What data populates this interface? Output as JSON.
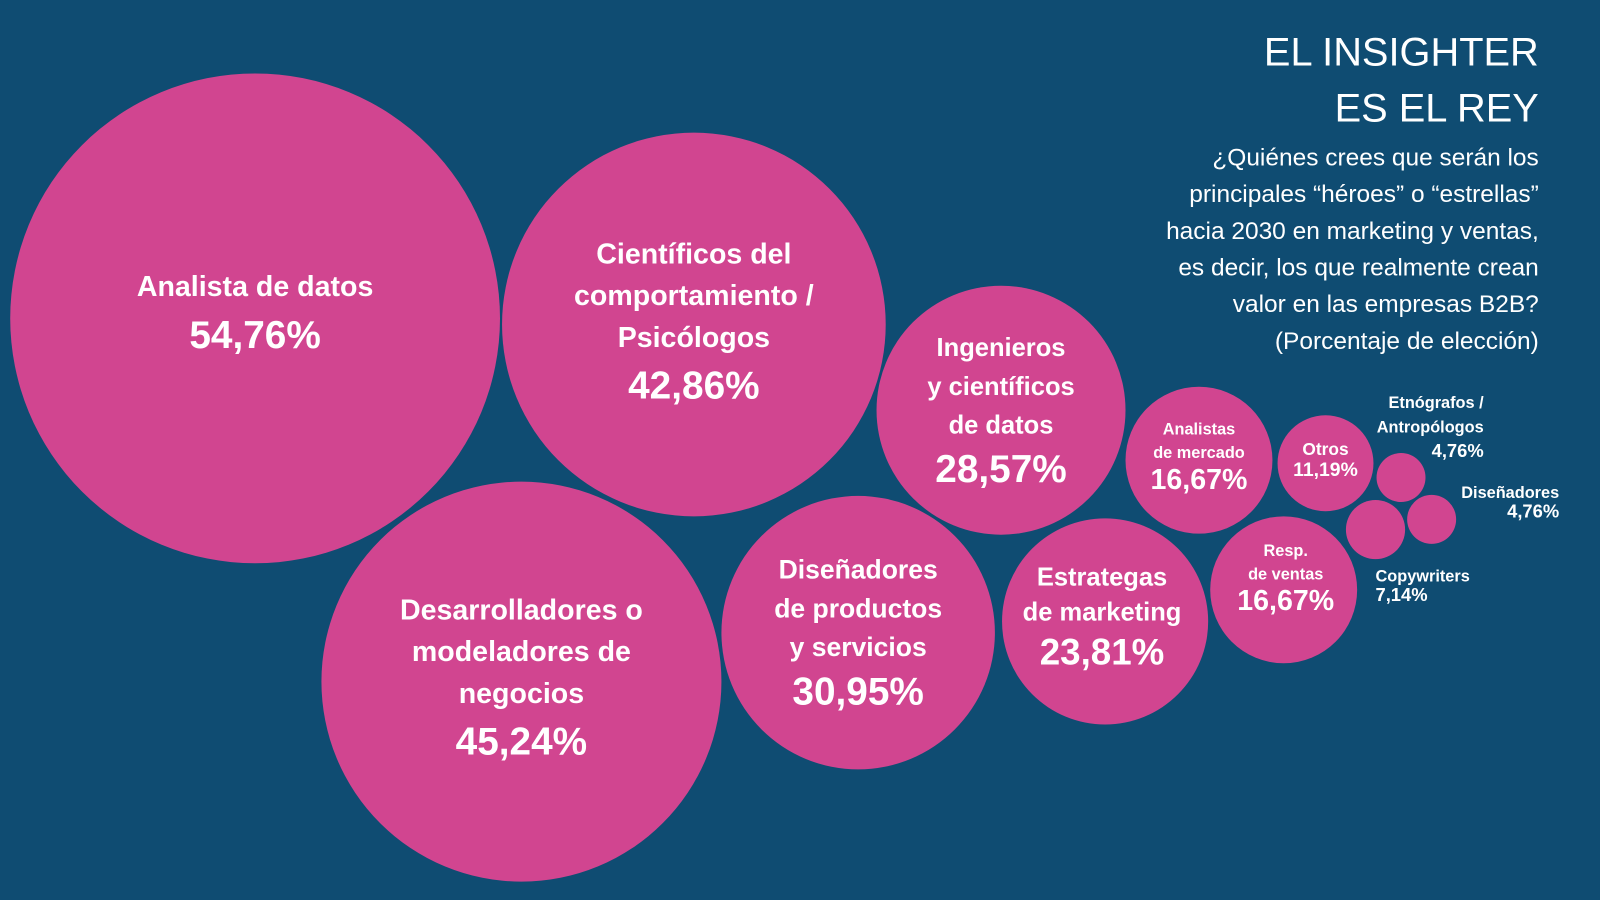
{
  "title": [
    "EL INSIGHTER",
    "ES EL REY"
  ],
  "subtitle": [
    "¿Quiénes crees que serán los",
    "principales “héroes” o “estrellas”",
    "hacia 2030 en marketing y ventas,",
    "es decir, los que realmente crean",
    "valor en las empresas B2B?",
    "(Porcentaje de elección)"
  ],
  "colors": {
    "background": "#0f4c72",
    "bubble": "#d14590",
    "text": "#ffffff"
  },
  "chart_data": {
    "type": "bubble",
    "unit": "%",
    "items": [
      {
        "label": [
          "Analista de datos"
        ],
        "value": 54.76,
        "display": "54,76%"
      },
      {
        "label": [
          "Científicos del",
          "comportamiento /",
          "Psicólogos"
        ],
        "value": 42.86,
        "display": "42,86%"
      },
      {
        "label": [
          "Ingenieros",
          "y científicos",
          "de datos"
        ],
        "value": 28.57,
        "display": "28,57%"
      },
      {
        "label": [
          "Analistas",
          "de mercado"
        ],
        "value": 16.67,
        "display": "16,67%"
      },
      {
        "label": [
          "Otros"
        ],
        "value": 11.19,
        "display": "11,19%"
      },
      {
        "label": [
          "Etnógrafos /",
          "Antropólogos"
        ],
        "value": 4.76,
        "display": "4,76%"
      },
      {
        "label": [
          "Diseñadores"
        ],
        "value": 4.76,
        "display": "4,76%"
      },
      {
        "label": [
          "Copywriters"
        ],
        "value": 7.14,
        "display": "7,14%"
      },
      {
        "label": [
          "Desarrolladores o",
          "modeladores de",
          "negocios"
        ],
        "value": 45.24,
        "display": "45,24%"
      },
      {
        "label": [
          "Diseñadores",
          "de productos",
          "y servicios"
        ],
        "value": 30.95,
        "display": "30,95%"
      },
      {
        "label": [
          "Estrategas",
          "de marketing"
        ],
        "value": 23.81,
        "display": "23,81%"
      },
      {
        "label": [
          "Resp.",
          "de ventas"
        ],
        "value": 16.67,
        "display": "16,67%"
      }
    ]
  }
}
